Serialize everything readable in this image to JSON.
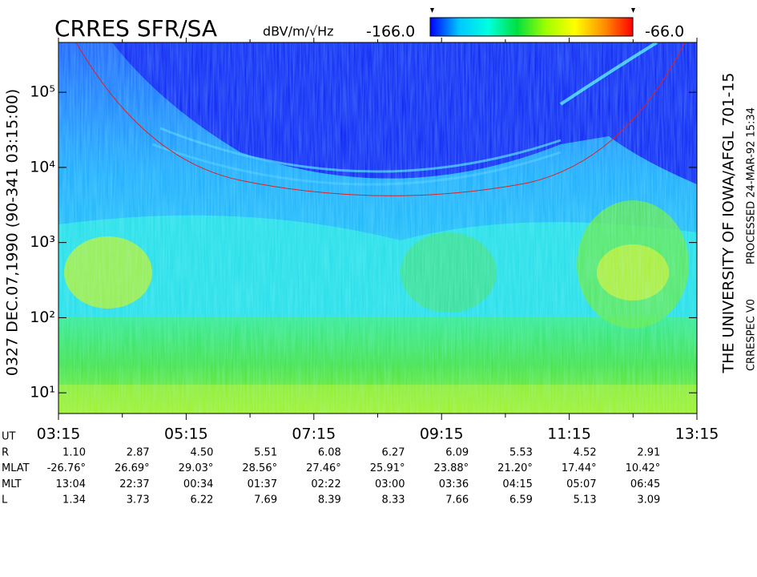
{
  "chart_data": {
    "type": "spectrogram",
    "title": "CRRES SFR/SA",
    "colorbar": {
      "label": "dBV/m/√Hz",
      "min": {
        "value": -166,
        "label": "-166.0"
      },
      "max": {
        "value": -66,
        "label": "-66.0"
      },
      "colors": [
        "#0000ff",
        "#00c8ff",
        "#00ffe0",
        "#00e040",
        "#a0ff00",
        "#ffff00",
        "#ff9000",
        "#ff0000"
      ]
    },
    "y_label": "0327   DEC.07,1990   (90-341 03:15:00)",
    "right_label": "THE UNIVERSITY OF IOWA/AFGL 701-15",
    "processed_label": "PROCESSED 24-MAR-92 15:34",
    "version_label": "CRRESPEC V0",
    "y_scale": "log",
    "ylim": [
      5.3,
      460000
    ],
    "yticks": [
      {
        "value": 10,
        "label": "10¹"
      },
      {
        "value": 100,
        "label": "10²"
      },
      {
        "value": 1000,
        "label": "10³"
      },
      {
        "value": 10000,
        "label": "10⁴"
      },
      {
        "value": 100000,
        "label": "10⁵"
      }
    ],
    "xlim": [
      3.25,
      13.25
    ],
    "xticks": [
      {
        "value": 3.25,
        "label": "03:15"
      },
      {
        "value": 5.25,
        "label": "05:15"
      },
      {
        "value": 7.25,
        "label": "07:15"
      },
      {
        "value": 9.25,
        "label": "09:15"
      },
      {
        "value": 11.25,
        "label": "11:15"
      },
      {
        "value": 13.25,
        "label": "13:15"
      }
    ],
    "xminor_ticks": [
      4.25,
      6.25,
      8.25,
      10.25,
      12.25
    ],
    "x_label": "UT",
    "ephemeris": [
      {
        "label": "R",
        "values": [
          "1.10",
          "2.87",
          "4.50",
          "5.51",
          "6.08",
          "6.27",
          "6.09",
          "5.53",
          "4.52",
          "2.91"
        ]
      },
      {
        "label": "MLAT",
        "values": [
          "-26.76°",
          "26.69°",
          "29.03°",
          "28.56°",
          "27.46°",
          "25.91°",
          "23.88°",
          "21.20°",
          "17.44°",
          "10.42°"
        ]
      },
      {
        "label": "MLT",
        "values": [
          "13:04",
          "22:37",
          "00:34",
          "01:37",
          "02:22",
          "03:00",
          "03:36",
          "04:15",
          "05:07",
          "06:45"
        ]
      },
      {
        "label": "L",
        "values": [
          "1.34",
          "3.73",
          "6.22",
          "7.69",
          "8.39",
          "8.33",
          "7.66",
          "6.59",
          "5.13",
          "3.09"
        ]
      }
    ]
  }
}
